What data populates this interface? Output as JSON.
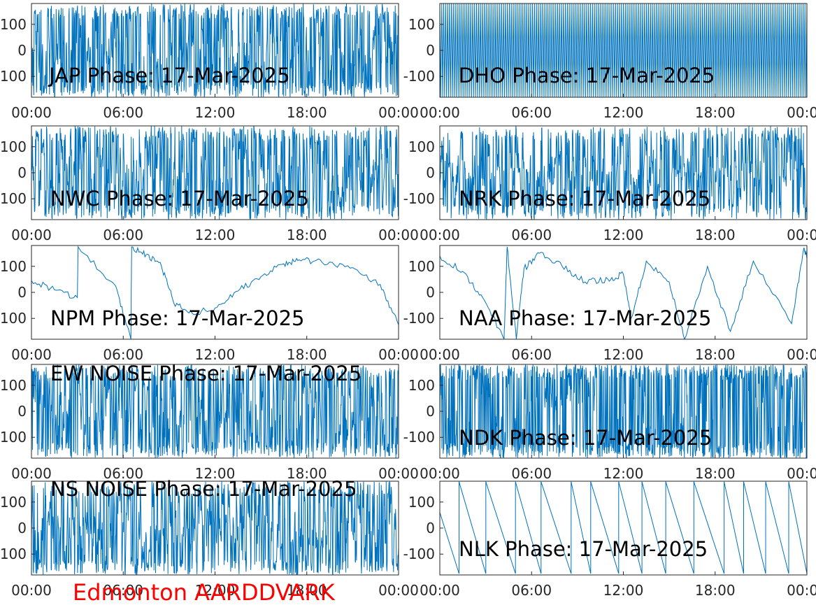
{
  "footer": {
    "text": "Edmonton AARDDVARK",
    "color": "#ff0000"
  },
  "style": {
    "line_color": "#0072bd",
    "axis_color": "#262626",
    "label_color": "#000000"
  },
  "chart_data": [
    {
      "type": "line",
      "title": "JAP Phase: 17-Mar-2025",
      "signal": "noise",
      "density": 0.5,
      "ylim": [
        -180,
        180
      ],
      "yticks": [
        "100",
        "0",
        "-100"
      ],
      "xticks": [
        "00:00",
        "06:00",
        "12:00",
        "18:00",
        "00:00"
      ]
    },
    {
      "type": "line",
      "title": "DHO Phase: 17-Mar-2025",
      "signal": "saw-fast",
      "density": 0.8,
      "ylim": [
        -180,
        180
      ],
      "yticks": [
        "100",
        "0",
        "-100"
      ],
      "xticks": [
        "00:00",
        "06:00",
        "12:00",
        "18:00",
        "00:00"
      ]
    },
    {
      "type": "line",
      "title": "NWC Phase: 17-Mar-2025",
      "signal": "noise",
      "density": 0.45,
      "ylim": [
        -180,
        180
      ],
      "yticks": [
        "100",
        "0",
        "-100"
      ],
      "xticks": [
        "00:00",
        "06:00",
        "12:00",
        "18:00",
        "00:00"
      ]
    },
    {
      "type": "line",
      "title": "NRK Phase: 17-Mar-2025",
      "signal": "noise",
      "density": 0.35,
      "ylim": [
        -180,
        180
      ],
      "yticks": [
        "100",
        "0",
        "-100"
      ],
      "xticks": [
        "00:00",
        "06:00",
        "12:00",
        "18:00",
        "00:00"
      ]
    },
    {
      "type": "line",
      "title": "NPM Phase: 17-Mar-2025",
      "signal": "points",
      "x": [
        0,
        1.5,
        3.0,
        3.05,
        5.5,
        6.5,
        6.55,
        7.5,
        8.5,
        9.3,
        10.5,
        12.0,
        13.5,
        15.0,
        16.5,
        17.5,
        19.0,
        21.0,
        22.8,
        24.0
      ],
      "y": [
        45,
        10,
        -20,
        175,
        25,
        -180,
        175,
        145,
        100,
        -40,
        -80,
        -60,
        5,
        60,
        110,
        125,
        115,
        95,
        30,
        -125
      ],
      "ylim": [
        -180,
        180
      ],
      "yticks": [
        "100",
        "0",
        "-100"
      ],
      "xticks": [
        "00:00",
        "06:00",
        "12:00",
        "18:00",
        "00:00"
      ]
    },
    {
      "type": "line",
      "title": "NAA Phase: 17-Mar-2025",
      "signal": "points",
      "x": [
        0,
        1.5,
        2.8,
        4.2,
        4.4,
        5.0,
        5.5,
        6.5,
        8.0,
        9.5,
        11.0,
        12.0,
        12.5,
        13.5,
        15.0,
        16.0,
        17.5,
        19.0,
        20.5,
        23.0,
        23.8,
        24.0
      ],
      "y": [
        140,
        80,
        -20,
        -180,
        175,
        -180,
        90,
        150,
        100,
        40,
        50,
        70,
        -100,
        120,
        40,
        -180,
        100,
        -150,
        120,
        -120,
        170,
        140
      ],
      "ylim": [
        -180,
        180
      ],
      "yticks": [
        "100",
        "0",
        "-100"
      ],
      "xticks": [
        "00:00",
        "06:00",
        "12:00",
        "18:00",
        "00:00"
      ]
    },
    {
      "type": "line",
      "title": "EW NOISE Phase: 17-Mar-2025",
      "signal": "noise",
      "density": 0.5,
      "ylim": [
        -180,
        180
      ],
      "yticks": [
        "100",
        "0",
        "-100"
      ],
      "xticks": [
        "00:00",
        "06:00",
        "12:00",
        "18:00",
        "00:00"
      ]
    },
    {
      "type": "line",
      "title": "NDK Phase: 17-Mar-2025",
      "signal": "noise",
      "density": 0.75,
      "ylim": [
        -180,
        180
      ],
      "yticks": [
        "100",
        "0",
        "-100"
      ],
      "xticks": [
        "00:00",
        "06:00",
        "12:00",
        "18:00",
        "00:00"
      ]
    },
    {
      "type": "line",
      "title": "NS NOISE Phase: 17-Mar-2025",
      "signal": "noise",
      "density": 0.4,
      "ylim": [
        -180,
        180
      ],
      "yticks": [
        "100",
        "0",
        "-100"
      ],
      "xticks": [
        "00:00",
        "06:00",
        "12:00",
        "18:00",
        "00:00"
      ]
    },
    {
      "type": "line",
      "title": "NLK Phase: 17-Mar-2025",
      "signal": "saw-slow",
      "density": 0,
      "ylim": [
        -180,
        180
      ],
      "yticks": [
        "100",
        "0",
        "-100"
      ],
      "xticks": [
        "00:00",
        "06:00",
        "12:00",
        "18:00",
        "00:00"
      ]
    }
  ]
}
